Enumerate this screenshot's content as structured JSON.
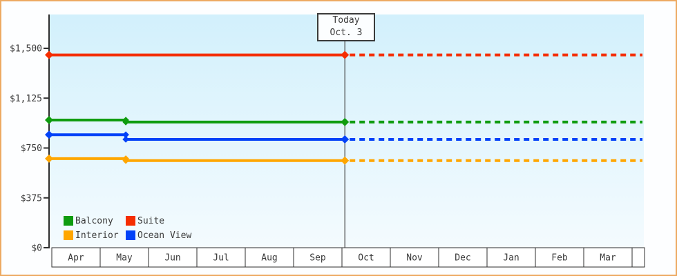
{
  "frame": {
    "border_color": "#edaa62",
    "background": "#fdfeff"
  },
  "today_flag": {
    "line1": "Today",
    "line2": "Oct. 3"
  },
  "legend": {
    "position": "bottom-left",
    "items": [
      {
        "label": "Balcony",
        "color": "#0f9c0f"
      },
      {
        "label": "Suite",
        "color": "#f52d00"
      },
      {
        "label": "Interior",
        "color": "#ffa600"
      },
      {
        "label": "Ocean View",
        "color": "#0342f8"
      }
    ]
  },
  "chart_data": {
    "type": "line",
    "title": "",
    "grid": false,
    "x_axis": {
      "tick_labels": [
        "Apr",
        "May",
        "Jun",
        "Jul",
        "Aug",
        "Sep",
        "Oct",
        "Nov",
        "Dec",
        "Jan",
        "Feb",
        "Mar"
      ]
    },
    "y_axis": {
      "tick_labels": [
        "$0",
        "$375",
        "$750",
        "$1,125",
        "$1,500"
      ],
      "tick_values": [
        0,
        375,
        750,
        1125,
        1500
      ],
      "range": [
        0,
        1560
      ],
      "unit": "USD"
    },
    "today": {
      "label": "Today Oct. 3",
      "month_index": 6.06
    },
    "forecast_dashed_after_today": true,
    "plot_background": {
      "top": "#d2f0fc",
      "bottom": "#f4fbfe"
    },
    "series": [
      {
        "name": "Suite",
        "color": "#f52d00",
        "points": [
          {
            "month_index": 0,
            "value": 1450
          }
        ],
        "value_at_today": 1450
      },
      {
        "name": "Balcony",
        "color": "#0f9c0f",
        "points": [
          {
            "month_index": 0,
            "value": 960
          },
          {
            "month_index": 1.53,
            "value": 945
          }
        ],
        "value_at_today": 945
      },
      {
        "name": "Ocean View",
        "color": "#0342f8",
        "points": [
          {
            "month_index": 0,
            "value": 850
          },
          {
            "month_index": 1.53,
            "value": 815
          }
        ],
        "value_at_today": 815
      },
      {
        "name": "Interior",
        "color": "#ffa600",
        "points": [
          {
            "month_index": 0,
            "value": 670
          },
          {
            "month_index": 1.53,
            "value": 655
          }
        ],
        "value_at_today": 655
      }
    ]
  }
}
